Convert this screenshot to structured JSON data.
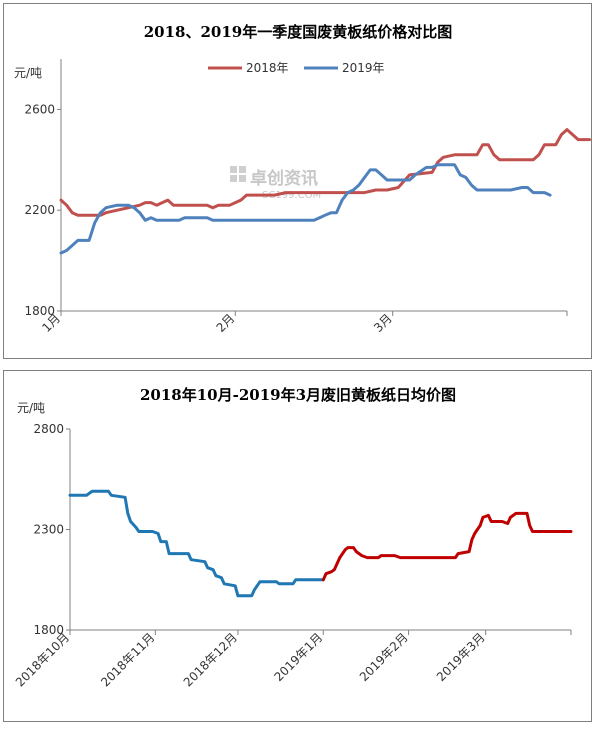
{
  "chart_data": [
    {
      "type": "line",
      "title": "2018、2019年一季度国废黄板纸价格对比图",
      "ylabel": "元/吨",
      "ylim": [
        1800,
        2800
      ],
      "yticks": [
        1800,
        2200,
        2600
      ],
      "xlim": [
        0,
        90
      ],
      "xticks": [
        {
          "label": "1月",
          "x": 0
        },
        {
          "label": "2月",
          "x": 31
        },
        {
          "label": "3月",
          "x": 59
        }
      ],
      "legend_position": "top-center",
      "watermark": {
        "text": "卓创资讯",
        "sub": "SC199.COM"
      },
      "series": [
        {
          "name": "2018年",
          "color": "#c0504d",
          "points": [
            [
              0,
              2240
            ],
            [
              1,
              2220
            ],
            [
              2,
              2190
            ],
            [
              3,
              2180
            ],
            [
              4,
              2180
            ],
            [
              6,
              2180
            ],
            [
              7,
              2180
            ],
            [
              8,
              2190
            ],
            [
              10,
              2200
            ],
            [
              12,
              2210
            ],
            [
              14,
              2220
            ],
            [
              15,
              2230
            ],
            [
              16,
              2230
            ],
            [
              17,
              2220
            ],
            [
              19,
              2240
            ],
            [
              20,
              2220
            ],
            [
              22,
              2220
            ],
            [
              26,
              2220
            ],
            [
              27,
              2210
            ],
            [
              28,
              2220
            ],
            [
              30,
              2220
            ],
            [
              31,
              2230
            ],
            [
              32,
              2240
            ],
            [
              33,
              2260
            ],
            [
              35,
              2260
            ],
            [
              38,
              2260
            ],
            [
              40,
              2270
            ],
            [
              45,
              2270
            ],
            [
              50,
              2270
            ],
            [
              52,
              2270
            ],
            [
              54,
              2270
            ],
            [
              56,
              2280
            ],
            [
              58,
              2280
            ],
            [
              60,
              2290
            ],
            [
              62,
              2340
            ],
            [
              66,
              2350
            ],
            [
              67,
              2390
            ],
            [
              68,
              2410
            ],
            [
              70,
              2420
            ],
            [
              74,
              2420
            ],
            [
              75,
              2460
            ],
            [
              76,
              2460
            ],
            [
              77,
              2420
            ],
            [
              78,
              2400
            ],
            [
              80,
              2400
            ],
            [
              84,
              2400
            ],
            [
              85,
              2420
            ],
            [
              86,
              2460
            ],
            [
              88,
              2460
            ],
            [
              89,
              2500
            ],
            [
              90,
              2520
            ],
            [
              91,
              2500
            ],
            [
              92,
              2480
            ],
            [
              94,
              2480
            ]
          ]
        },
        {
          "name": "2019年",
          "color": "#4f81bd",
          "points": [
            [
              0,
              2030
            ],
            [
              1,
              2040
            ],
            [
              2,
              2060
            ],
            [
              3,
              2080
            ],
            [
              5,
              2080
            ],
            [
              6,
              2150
            ],
            [
              7,
              2190
            ],
            [
              8,
              2210
            ],
            [
              10,
              2220
            ],
            [
              12,
              2220
            ],
            [
              13,
              2210
            ],
            [
              14,
              2190
            ],
            [
              15,
              2160
            ],
            [
              16,
              2170
            ],
            [
              17,
              2160
            ],
            [
              21,
              2160
            ],
            [
              22,
              2170
            ],
            [
              26,
              2170
            ],
            [
              27,
              2160
            ],
            [
              35,
              2160
            ],
            [
              40,
              2160
            ],
            [
              45,
              2160
            ],
            [
              46,
              2170
            ],
            [
              47,
              2180
            ],
            [
              48,
              2190
            ],
            [
              49,
              2190
            ],
            [
              50,
              2240
            ],
            [
              51,
              2270
            ],
            [
              52,
              2280
            ],
            [
              53,
              2300
            ],
            [
              54,
              2330
            ],
            [
              55,
              2360
            ],
            [
              56,
              2360
            ],
            [
              57,
              2340
            ],
            [
              58,
              2320
            ],
            [
              60,
              2320
            ],
            [
              62,
              2320
            ],
            [
              63,
              2340
            ],
            [
              65,
              2370
            ],
            [
              66,
              2370
            ],
            [
              67,
              2380
            ],
            [
              68,
              2380
            ],
            [
              70,
              2380
            ],
            [
              71,
              2340
            ],
            [
              72,
              2330
            ],
            [
              73,
              2300
            ],
            [
              74,
              2280
            ],
            [
              78,
              2280
            ],
            [
              80,
              2280
            ],
            [
              82,
              2290
            ],
            [
              83,
              2290
            ],
            [
              84,
              2270
            ],
            [
              86,
              2270
            ],
            [
              87,
              2260
            ]
          ]
        }
      ]
    },
    {
      "type": "line",
      "title": "2018年10月-2019年3月废旧黄板纸日均价图",
      "ylabel": "元/吨",
      "ylim": [
        1800,
        2800
      ],
      "yticks": [
        1800,
        2300,
        2800
      ],
      "xlim": [
        0,
        182
      ],
      "xticks": [
        {
          "label": "2018年10月",
          "x": 0
        },
        {
          "label": "2018年11月",
          "x": 31
        },
        {
          "label": "2018年12月",
          "x": 61
        },
        {
          "label": "2019年1月",
          "x": 92
        },
        {
          "label": "2019年2月",
          "x": 123
        },
        {
          "label": "2019年3月",
          "x": 151
        }
      ],
      "series": [
        {
          "name": "",
          "color": "#1f77b4",
          "points": [
            [
              0,
              2470
            ],
            [
              6,
              2470
            ],
            [
              8,
              2490
            ],
            [
              14,
              2490
            ],
            [
              15,
              2470
            ],
            [
              20,
              2460
            ],
            [
              21,
              2380
            ],
            [
              22,
              2340
            ],
            [
              24,
              2310
            ],
            [
              25,
              2290
            ],
            [
              30,
              2290
            ],
            [
              32,
              2280
            ],
            [
              33,
              2240
            ],
            [
              35,
              2240
            ],
            [
              36,
              2180
            ],
            [
              43,
              2180
            ],
            [
              44,
              2150
            ],
            [
              49,
              2140
            ],
            [
              50,
              2110
            ],
            [
              52,
              2100
            ],
            [
              53,
              2070
            ],
            [
              55,
              2060
            ],
            [
              56,
              2030
            ],
            [
              60,
              2020
            ],
            [
              61,
              1970
            ],
            [
              66,
              1970
            ],
            [
              67,
              2000
            ],
            [
              69,
              2040
            ],
            [
              75,
              2040
            ],
            [
              76,
              2030
            ],
            [
              81,
              2030
            ],
            [
              82,
              2050
            ],
            [
              89,
              2050
            ],
            [
              92,
              2050
            ]
          ]
        },
        {
          "name": "",
          "color": "#c00000",
          "points": [
            [
              92,
              2050
            ],
            [
              93,
              2080
            ],
            [
              95,
              2090
            ],
            [
              96,
              2100
            ],
            [
              98,
              2160
            ],
            [
              100,
              2200
            ],
            [
              101,
              2210
            ],
            [
              103,
              2210
            ],
            [
              104,
              2190
            ],
            [
              106,
              2170
            ],
            [
              108,
              2160
            ],
            [
              112,
              2160
            ],
            [
              113,
              2170
            ],
            [
              118,
              2170
            ],
            [
              120,
              2160
            ],
            [
              130,
              2160
            ],
            [
              140,
              2160
            ],
            [
              141,
              2180
            ],
            [
              145,
              2190
            ],
            [
              146,
              2250
            ],
            [
              147,
              2280
            ],
            [
              148,
              2300
            ],
            [
              149,
              2320
            ],
            [
              150,
              2360
            ],
            [
              152,
              2370
            ],
            [
              153,
              2340
            ],
            [
              157,
              2340
            ],
            [
              159,
              2330
            ],
            [
              160,
              2360
            ],
            [
              162,
              2380
            ],
            [
              166,
              2380
            ],
            [
              167,
              2320
            ],
            [
              168,
              2290
            ],
            [
              172,
              2290
            ],
            [
              178,
              2290
            ],
            [
              182,
              2290
            ]
          ]
        }
      ]
    }
  ]
}
